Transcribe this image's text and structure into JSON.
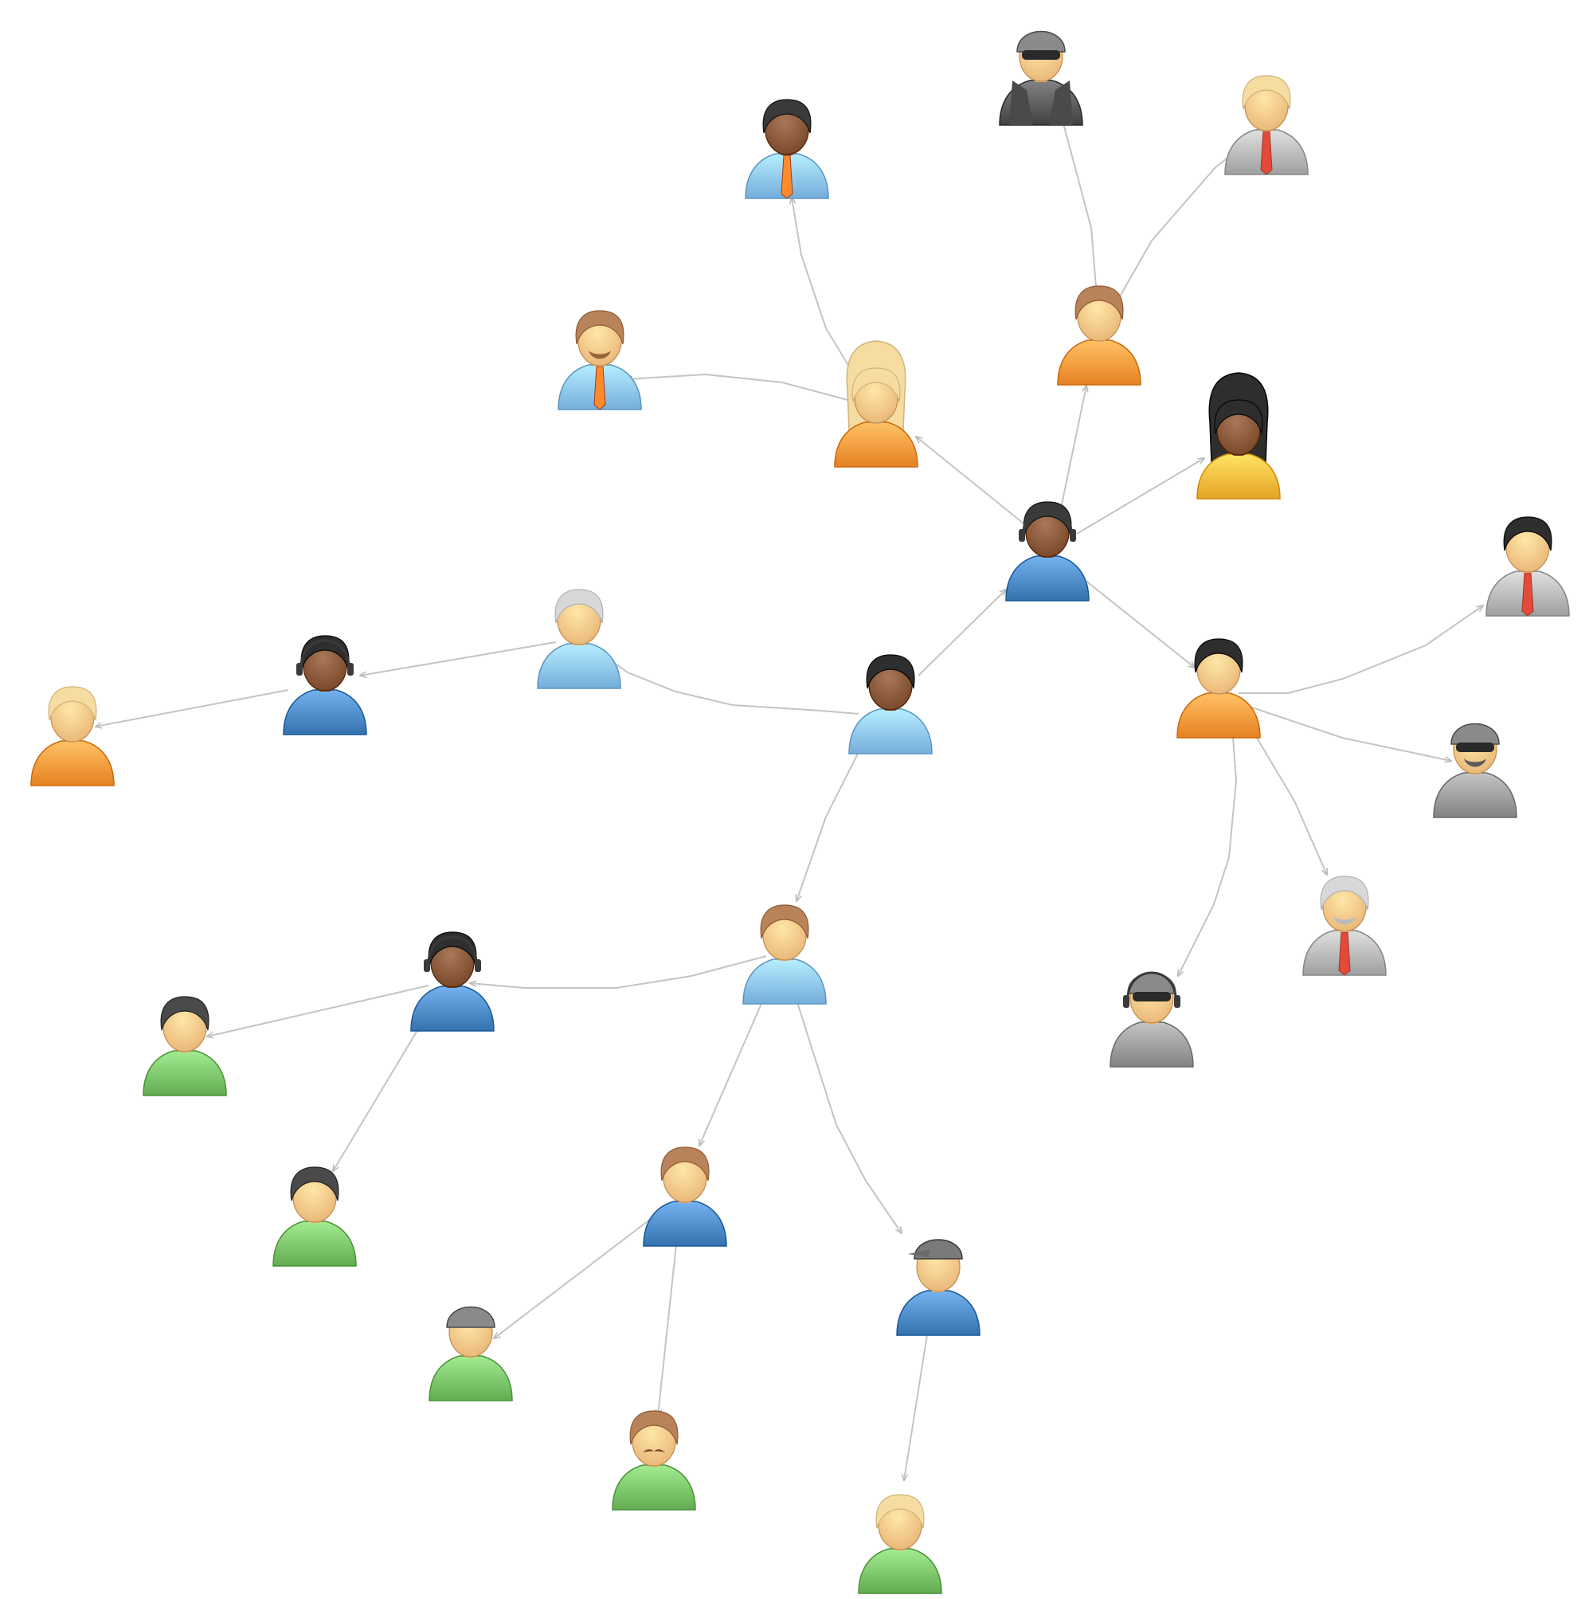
{
  "diagram": {
    "type": "network",
    "colors": {
      "edge": "#c4c4c4",
      "skin_light": "#fcc98a",
      "skin_dark": "#8a5a3a",
      "shirt_light_blue": "#8ec6f4",
      "shirt_blue": "#4c8ac8",
      "shirt_orange": "#ff9a3c",
      "shirt_green": "#7cc46a",
      "shirt_gray": "#9c9c9c",
      "shirt_yellow": "#ffbc3c"
    },
    "nodes": [
      {
        "id": "n1",
        "icon": "man-dark-headset-blue-hoodie-icon",
        "hair": "#3a3a3a",
        "skin": "dark",
        "shirt": "#4c8ac8"
      },
      {
        "id": "n2",
        "icon": "woman-dark-light-blue-shirt-icon",
        "hair": "#2e2e2e",
        "skin": "dark",
        "shirt": "#8ec6f4"
      },
      {
        "id": "n3",
        "icon": "woman-blonde-long-orange-shirt-icon",
        "hair": "#f6dca0",
        "skin": "light",
        "shirt": "#ff9a3c"
      },
      {
        "id": "n4",
        "icon": "man-dark-tie-light-blue-icon",
        "hair": "#3a3a3a",
        "skin": "dark",
        "shirt": "#8ec6f4"
      },
      {
        "id": "n5",
        "icon": "man-beard-tie-light-blue-icon",
        "hair": "#b8835a",
        "skin": "light",
        "shirt": "#8ec6f4"
      },
      {
        "id": "n6",
        "icon": "woman-brown-orange-shirt-icon",
        "hair": "#b8835a",
        "skin": "light",
        "shirt": "#ff9a3c"
      },
      {
        "id": "n7",
        "icon": "spy-beanie-sunglasses-icon",
        "hair": "#8a8a8a",
        "skin": "light",
        "shirt": "#5a5a5a"
      },
      {
        "id": "n8",
        "icon": "man-blonde-suit-icon",
        "hair": "#f6dca0",
        "skin": "light",
        "shirt": "#b8b8b8"
      },
      {
        "id": "n9",
        "icon": "woman-dark-long-yellow-shirt-icon",
        "hair": "#2e2e2e",
        "skin": "dark",
        "shirt": "#ffbc3c"
      },
      {
        "id": "n10",
        "icon": "man-dark-orange-hoodie-icon",
        "hair": "#2e2e2e",
        "skin": "light",
        "shirt": "#ff9a3c"
      },
      {
        "id": "n11",
        "icon": "man-dark-suit-icon",
        "hair": "#2e2e2e",
        "skin": "light",
        "shirt": "#b8b8b8"
      },
      {
        "id": "n12",
        "icon": "man-beanie-sunglasses-gray-icon",
        "hair": "#7a7a7a",
        "skin": "light",
        "shirt": "#9c9c9c"
      },
      {
        "id": "n13",
        "icon": "man-gray-hair-beard-suit-icon",
        "hair": "#d8d8d8",
        "skin": "light",
        "shirt": "#b8b8b8"
      },
      {
        "id": "n14",
        "icon": "man-beanie-headset-sunglasses-icon",
        "hair": "#7a7a7a",
        "skin": "light",
        "shirt": "#9c9c9c"
      },
      {
        "id": "n15",
        "icon": "man-gray-hair-light-blue-icon",
        "hair": "#d8d8d8",
        "skin": "light",
        "shirt": "#8ec6f4"
      },
      {
        "id": "n16",
        "icon": "man-dark-headset-blue-hoodie-icon",
        "hair": "#2e2e2e",
        "skin": "dark",
        "shirt": "#4c8ac8"
      },
      {
        "id": "n17",
        "icon": "man-blonde-orange-shirt-icon",
        "hair": "#f6dca0",
        "skin": "light",
        "shirt": "#ff9a3c"
      },
      {
        "id": "n18",
        "icon": "woman-brown-light-blue-shirt-icon",
        "hair": "#b8835a",
        "skin": "light",
        "shirt": "#8ec6f4"
      },
      {
        "id": "n19",
        "icon": "man-dark-headset-blue-hoodie-icon",
        "hair": "#2e2e2e",
        "skin": "dark",
        "shirt": "#4c8ac8"
      },
      {
        "id": "n20",
        "icon": "person-dark-hair-green-shirt-icon",
        "hair": "#4a4a4a",
        "skin": "light",
        "shirt": "#7cc46a"
      },
      {
        "id": "n21",
        "icon": "woman-dark-bob-green-shirt-icon",
        "hair": "#4a4a4a",
        "skin": "light",
        "shirt": "#7cc46a"
      },
      {
        "id": "n22",
        "icon": "man-brown-blue-hoodie-icon",
        "hair": "#b8835a",
        "skin": "light",
        "shirt": "#4c8ac8"
      },
      {
        "id": "n23",
        "icon": "man-beanie-green-shirt-icon",
        "hair": "#7a7a7a",
        "skin": "light",
        "shirt": "#7cc46a"
      },
      {
        "id": "n24",
        "icon": "man-mustache-green-shirt-icon",
        "hair": "#b8835a",
        "skin": "light",
        "shirt": "#7cc46a"
      },
      {
        "id": "n25",
        "icon": "man-cap-blue-hoodie-icon",
        "hair": "#b8835a",
        "skin": "light",
        "shirt": "#4c8ac8"
      },
      {
        "id": "n26",
        "icon": "woman-blonde-green-shirt-icon",
        "hair": "#f6dca0",
        "skin": "light",
        "shirt": "#7cc46a"
      }
    ],
    "edges": [
      {
        "from": "n2",
        "to": "n1"
      },
      {
        "from": "n1",
        "to": "n3"
      },
      {
        "from": "n1",
        "to": "n6"
      },
      {
        "from": "n1",
        "to": "n9"
      },
      {
        "from": "n1",
        "to": "n10"
      },
      {
        "from": "n3",
        "to": "n4"
      },
      {
        "from": "n3",
        "to": "n5"
      },
      {
        "from": "n6",
        "to": "n7"
      },
      {
        "from": "n6",
        "to": "n8"
      },
      {
        "from": "n10",
        "to": "n11"
      },
      {
        "from": "n10",
        "to": "n12"
      },
      {
        "from": "n10",
        "to": "n13"
      },
      {
        "from": "n10",
        "to": "n14"
      },
      {
        "from": "n2",
        "to": "n15"
      },
      {
        "from": "n15",
        "to": "n16"
      },
      {
        "from": "n16",
        "to": "n17"
      },
      {
        "from": "n2",
        "to": "n18"
      },
      {
        "from": "n18",
        "to": "n19"
      },
      {
        "from": "n19",
        "to": "n20"
      },
      {
        "from": "n19",
        "to": "n21"
      },
      {
        "from": "n18",
        "to": "n22"
      },
      {
        "from": "n18",
        "to": "n25"
      },
      {
        "from": "n22",
        "to": "n23"
      },
      {
        "from": "n22",
        "to": "n24"
      },
      {
        "from": "n25",
        "to": "n26"
      }
    ]
  }
}
